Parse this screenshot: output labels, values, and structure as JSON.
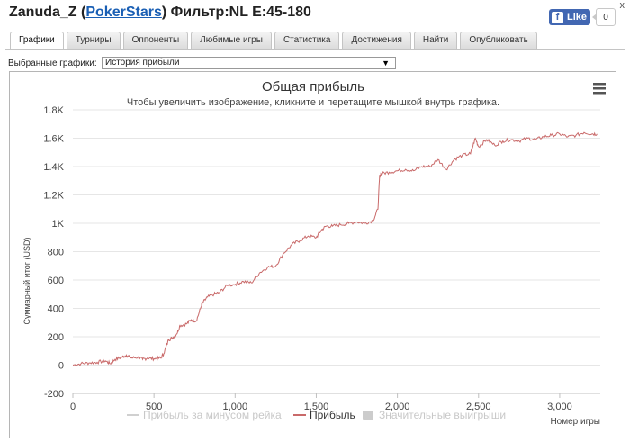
{
  "header": {
    "player": "Zanuda_Z",
    "open_paren": " (",
    "site": "PokerStars",
    "filter": ") Фильтр:NL E:45-180",
    "close_label": "x",
    "fb_like_label": "Like",
    "fb_count": "0"
  },
  "tabs": [
    {
      "label": "Графики",
      "active": true
    },
    {
      "label": "Турниры",
      "active": false
    },
    {
      "label": "Оппоненты",
      "active": false
    },
    {
      "label": "Любимые игры",
      "active": false
    },
    {
      "label": "Статистика",
      "active": false
    },
    {
      "label": "Достижения",
      "active": false
    },
    {
      "label": "Найти",
      "active": false
    },
    {
      "label": "Опубликовать",
      "active": false
    }
  ],
  "selector": {
    "label": "Выбранные графики:",
    "value": "История прибыли"
  },
  "colors": {
    "profit_line": "#c96a6a",
    "rake_line": "#d0d0d0",
    "grid": "#e6e6e6",
    "link": "#1a5fb4"
  },
  "chart_data": {
    "type": "line",
    "title": "Общая прибыль",
    "subtitle": "Чтобы увеличить изображение, кликните и перетащите мышкой внутрь графика.",
    "xlabel": "Номер игры",
    "ylabel": "Суммарный итог (USD)",
    "xlim": [
      0,
      3250
    ],
    "ylim": [
      -200,
      1800
    ],
    "y_ticks": [
      -200,
      0,
      200,
      400,
      600,
      800,
      1000,
      1200,
      1400,
      1600,
      1800
    ],
    "y_tick_labels": [
      "-200",
      "0",
      "200",
      "400",
      "600",
      "800",
      "1K",
      "1.2K",
      "1.4K",
      "1.6K",
      "1.8K"
    ],
    "x_ticks": [
      0,
      500,
      1000,
      1500,
      2000,
      2500,
      3000
    ],
    "x_tick_labels": [
      "0",
      "500",
      "1,000",
      "1,500",
      "2,000",
      "2,500",
      "3,000"
    ],
    "grid": true,
    "legend_position": "bottom",
    "legend": [
      {
        "name": "Прибыль за минусом рейка",
        "visible": false
      },
      {
        "name": "Прибыль",
        "visible": true
      },
      {
        "name": "Значительные выигрыши",
        "visible": false
      }
    ],
    "series": [
      {
        "name": "Прибыль",
        "x": [
          0,
          50,
          100,
          150,
          200,
          230,
          260,
          300,
          330,
          360,
          400,
          430,
          460,
          500,
          540,
          560,
          590,
          610,
          640,
          660,
          700,
          730,
          760,
          790,
          800,
          830,
          870,
          900,
          950,
          1000,
          1050,
          1100,
          1150,
          1200,
          1250,
          1300,
          1350,
          1400,
          1450,
          1500,
          1530,
          1560,
          1600,
          1650,
          1700,
          1750,
          1800,
          1850,
          1880,
          1890,
          1900,
          1950,
          2000,
          2050,
          2100,
          2150,
          2200,
          2250,
          2300,
          2350,
          2400,
          2450,
          2480,
          2500,
          2550,
          2600,
          2650,
          2700,
          2750,
          2800,
          2850,
          2900,
          2950,
          3000,
          3050,
          3100,
          3150,
          3200,
          3230
        ],
        "y": [
          0,
          10,
          15,
          20,
          30,
          10,
          40,
          55,
          70,
          50,
          55,
          40,
          50,
          45,
          50,
          80,
          180,
          190,
          220,
          280,
          290,
          320,
          310,
          410,
          440,
          480,
          500,
          510,
          560,
          570,
          590,
          580,
          650,
          690,
          700,
          790,
          850,
          880,
          910,
          900,
          950,
          980,
          980,
          990,
          1000,
          1010,
          1000,
          1020,
          1100,
          1330,
          1350,
          1360,
          1370,
          1380,
          1370,
          1400,
          1400,
          1450,
          1380,
          1450,
          1480,
          1490,
          1600,
          1540,
          1590,
          1550,
          1580,
          1590,
          1580,
          1600,
          1590,
          1610,
          1620,
          1630,
          1610,
          1620,
          1640,
          1630,
          1630
        ]
      }
    ]
  }
}
